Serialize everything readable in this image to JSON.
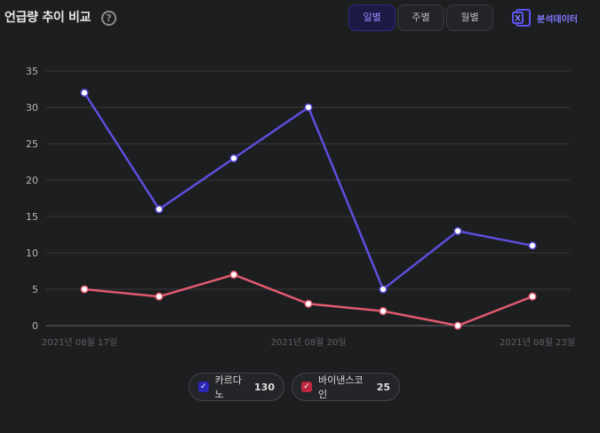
{
  "header": {
    "title": "언급량 추이 비교",
    "help_glyph": "?"
  },
  "tabs": [
    {
      "label": "일별",
      "active": true
    },
    {
      "label": "주별",
      "active": false
    },
    {
      "label": "월별",
      "active": false
    }
  ],
  "export": {
    "label": "분석데이터",
    "icon": "excel-icon",
    "icon_letter": "X"
  },
  "chart_data": {
    "type": "line",
    "x": [
      "2021-08-17",
      "2021-08-18",
      "2021-08-19",
      "2021-08-20",
      "2021-08-21",
      "2021-08-22",
      "2021-08-23"
    ],
    "x_tick_labels": [
      "2021년 08월 17일",
      "2021년 08월 20일",
      "2021년 08월 23일"
    ],
    "y_ticks": [
      0,
      5,
      10,
      15,
      20,
      25,
      30,
      35
    ],
    "ylim": [
      0,
      35
    ],
    "grid": true,
    "legend_position": "bottom",
    "series": [
      {
        "name": "카르다노",
        "color": "#5b4fdd",
        "values": [
          32,
          16,
          23,
          30,
          5,
          13,
          11
        ]
      },
      {
        "name": "바이낸스코인",
        "color": "#e05a6e",
        "values": [
          5,
          4,
          7,
          3,
          2,
          0,
          4
        ]
      }
    ]
  },
  "legend": [
    {
      "name": "카르다노",
      "count": "130",
      "check_color": "#2b25b8"
    },
    {
      "name": "바이낸스코인",
      "count": "25",
      "check_color": "#c0283f"
    }
  ]
}
